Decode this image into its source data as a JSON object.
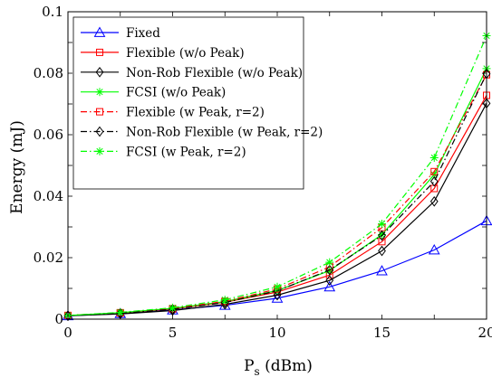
{
  "chart_data": {
    "type": "line",
    "title": "",
    "xlabel": "P",
    "xlabel_sub": "s",
    "xlabel_unit": " (dBm)",
    "ylabel": "Energy (mJ)",
    "xlim": [
      0,
      20
    ],
    "ylim": [
      0,
      0.1
    ],
    "xticks": [
      0,
      5,
      10,
      15,
      20
    ],
    "yticks": [
      0,
      0.02,
      0.04,
      0.06,
      0.08,
      0.1
    ],
    "xtick_labels": [
      "0",
      "5",
      "10",
      "15",
      "20"
    ],
    "ytick_labels": [
      "0",
      "0.02",
      "0.04",
      "0.06",
      "0.08",
      "0.1"
    ],
    "grid": false,
    "legend_position": "top-left",
    "x": [
      0,
      2.5,
      5,
      7.5,
      10,
      12.5,
      15,
      17.5,
      20
    ],
    "series": [
      {
        "name": "Fixed",
        "color": "#0000ff",
        "dash": "solid",
        "marker": "triangle",
        "values": [
          0.0011,
          0.0018,
          0.003,
          0.0045,
          0.0068,
          0.0105,
          0.0157,
          0.0225,
          0.032
        ]
      },
      {
        "name": "Flexible (w/o Peak)",
        "color": "#ff0000",
        "dash": "solid",
        "marker": "square",
        "values": [
          0.0012,
          0.002,
          0.0033,
          0.0055,
          0.0088,
          0.0143,
          0.0252,
          0.0425,
          0.0728
        ]
      },
      {
        "name": "Non-Rob Flexible (w/o Peak)",
        "color": "#000000",
        "dash": "solid",
        "marker": "diamond",
        "values": [
          0.0011,
          0.0017,
          0.0028,
          0.0048,
          0.0078,
          0.0126,
          0.0222,
          0.0383,
          0.0702
        ]
      },
      {
        "name": "FCSI (w/o Peak)",
        "color": "#00ff00",
        "dash": "solid",
        "marker": "star",
        "values": [
          0.0012,
          0.0021,
          0.0035,
          0.0057,
          0.0093,
          0.0158,
          0.0275,
          0.047,
          0.0815
        ]
      },
      {
        "name": "Flexible (w Peak, r=2)",
        "color": "#ff0000",
        "dash": "dashdot",
        "marker": "square",
        "values": [
          0.0012,
          0.0021,
          0.0034,
          0.0058,
          0.0098,
          0.017,
          0.0298,
          0.048,
          0.0795
        ]
      },
      {
        "name": "Non-Rob Flexible (w Peak, r=2)",
        "color": "#000000",
        "dash": "dashdot",
        "marker": "diamond",
        "values": [
          0.0011,
          0.0019,
          0.0032,
          0.0054,
          0.0092,
          0.016,
          0.0272,
          0.0448,
          0.0798
        ]
      },
      {
        "name": "FCSI (w Peak, r=2)",
        "color": "#00ff00",
        "dash": "dashdot",
        "marker": "star",
        "values": [
          0.0012,
          0.0022,
          0.0037,
          0.0063,
          0.0105,
          0.0185,
          0.031,
          0.0525,
          0.0922
        ]
      }
    ]
  }
}
